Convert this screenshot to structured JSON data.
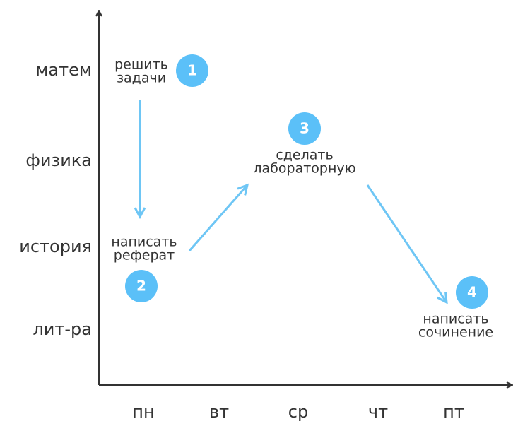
{
  "y_axis": {
    "labels": [
      "матем",
      "физика",
      "история",
      "лит-ра"
    ]
  },
  "x_axis": {
    "labels": [
      "пн",
      "вт",
      "ср",
      "чт",
      "пт"
    ]
  },
  "nodes": [
    {
      "number": "1",
      "label": [
        "решить",
        "задачи"
      ]
    },
    {
      "number": "2",
      "label": [
        "написать",
        "реферат"
      ]
    },
    {
      "number": "3",
      "label": [
        "сделать",
        "лабораторную"
      ]
    },
    {
      "number": "4",
      "label": [
        "написать",
        "сочинение"
      ]
    }
  ]
}
